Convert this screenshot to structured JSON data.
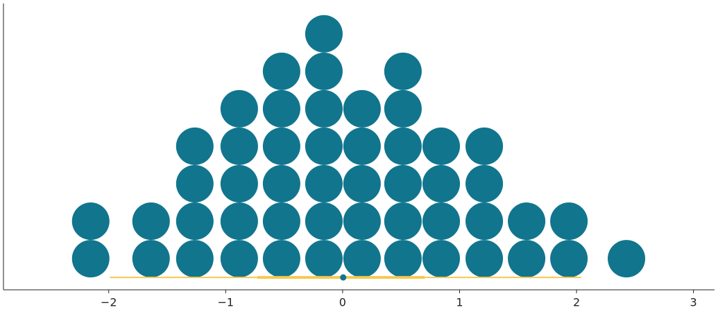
{
  "chart_data": {
    "type": "dot",
    "x": [
      -2.154,
      -1.638,
      -1.264,
      -0.884,
      -0.522,
      -0.16,
      0.166,
      0.516,
      0.843,
      1.211,
      1.573,
      1.935,
      2.427
    ],
    "values": [
      2,
      2,
      4,
      5,
      6,
      7,
      5,
      6,
      4,
      4,
      2,
      2,
      1
    ],
    "color": "#11758e",
    "interval": {
      "point": 0.005,
      "inner": [
        -0.73,
        0.7
      ],
      "outer": [
        -1.99,
        2.04
      ],
      "color": "#f5c94d",
      "point_color": "#11758e"
    },
    "xlim": [
      -2.9,
      3.18
    ],
    "xticks": [
      {
        "value": -2,
        "label": "−2"
      },
      {
        "value": -1,
        "label": "−1"
      },
      0,
      1,
      2,
      3
    ],
    "ylim": [
      -0.33,
      7.31
    ]
  }
}
